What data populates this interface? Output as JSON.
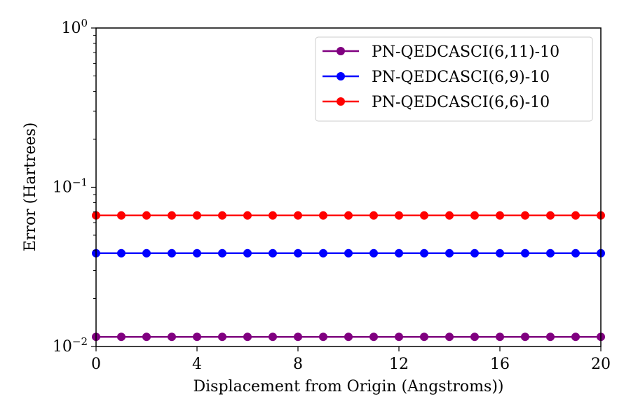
{
  "chart_data": {
    "type": "line",
    "title": "",
    "xlabel": "Displacement from Origin (Angstroms))",
    "ylabel": "Error (Hartrees)",
    "xlim": [
      0,
      20
    ],
    "ylim": [
      0.01,
      1
    ],
    "yscale": "log",
    "grid": false,
    "legend_position": "top-right",
    "x": [
      0,
      1,
      2,
      3,
      4,
      5,
      6,
      7,
      8,
      9,
      10,
      11,
      12,
      13,
      14,
      15,
      16,
      17,
      18,
      19,
      20
    ],
    "xticks": [
      {
        "value": 0,
        "label": "0"
      },
      {
        "value": 4,
        "label": "4"
      },
      {
        "value": 8,
        "label": "8"
      },
      {
        "value": 12,
        "label": "12"
      },
      {
        "value": 16,
        "label": "16"
      },
      {
        "value": 20,
        "label": "20"
      }
    ],
    "yticks": [
      {
        "value": 1,
        "base": "10",
        "exp": "0"
      },
      {
        "value": 0.1,
        "base": "10",
        "exp": "−1"
      },
      {
        "value": 0.01,
        "base": "10",
        "exp": "−2"
      }
    ],
    "series": [
      {
        "name": "PN-QEDCASCI(6,11)-10",
        "color": "#800080",
        "values": [
          0.0115,
          0.0115,
          0.0115,
          0.0115,
          0.0115,
          0.0115,
          0.0115,
          0.0115,
          0.0115,
          0.0115,
          0.0115,
          0.0115,
          0.0115,
          0.0115,
          0.0115,
          0.0115,
          0.0115,
          0.0115,
          0.0115,
          0.0115,
          0.0115
        ]
      },
      {
        "name": "PN-QEDCASCI(6,9)-10",
        "color": "#0000ff",
        "values": [
          0.0385,
          0.0385,
          0.0385,
          0.0385,
          0.0385,
          0.0385,
          0.0385,
          0.0385,
          0.0385,
          0.0385,
          0.0385,
          0.0385,
          0.0385,
          0.0385,
          0.0385,
          0.0385,
          0.0385,
          0.0385,
          0.0385,
          0.0385,
          0.0385
        ]
      },
      {
        "name": "PN-QEDCASCI(6,6)-10",
        "color": "#ff0000",
        "values": [
          0.0665,
          0.0665,
          0.0665,
          0.0665,
          0.0665,
          0.0665,
          0.0665,
          0.0665,
          0.0665,
          0.0665,
          0.0665,
          0.0665,
          0.0665,
          0.0665,
          0.0665,
          0.0665,
          0.0665,
          0.0665,
          0.0665,
          0.0665,
          0.0665
        ]
      }
    ]
  }
}
